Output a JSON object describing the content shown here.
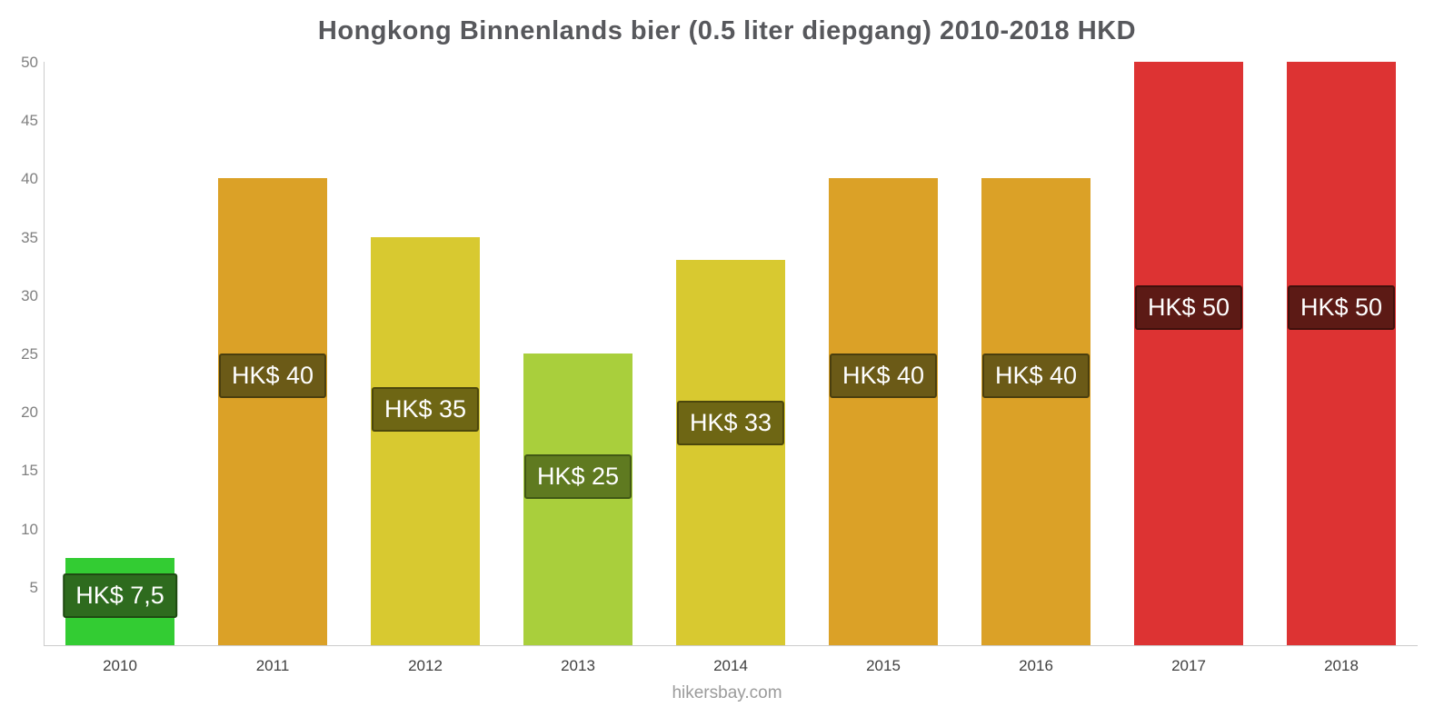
{
  "title": "Hongkong Binnenlands bier (0.5 liter diepgang) 2010-2018 HKD",
  "footer": "hikersbay.com",
  "chart_data": {
    "type": "bar",
    "title": "Hongkong Binnenlands bier (0.5 liter diepgang) 2010-2018 HKD",
    "categories": [
      "2010",
      "2011",
      "2012",
      "2013",
      "2014",
      "2015",
      "2016",
      "2017",
      "2018"
    ],
    "values": [
      7.5,
      40,
      35,
      25,
      33,
      40,
      40,
      50,
      50
    ],
    "bar_labels": [
      "HK$ 7,5",
      "HK$ 40",
      "HK$ 35",
      "HK$ 25",
      "HK$ 33",
      "HK$ 40",
      "HK$ 40",
      "HK$ 50",
      "HK$ 50"
    ],
    "bar_colors": [
      "#33cc33",
      "#dba127",
      "#d8c930",
      "#a9cf3c",
      "#d8c930",
      "#dba127",
      "#dba127",
      "#dd3333",
      "#dd3333"
    ],
    "label_bg_colors": [
      "#2e6b1e",
      "#6b5a17",
      "#6e6614",
      "#5f7a20",
      "#6e6614",
      "#6b5a17",
      "#6b5a17",
      "#5c1a15",
      "#5c1a15"
    ],
    "label_border_colors": [
      "#1f4a12",
      "#4a3e0e",
      "#4c470c",
      "#415815",
      "#4c470c",
      "#4a3e0e",
      "#4a3e0e",
      "#40100c",
      "#40100c"
    ],
    "xlabel": "",
    "ylabel": "",
    "ylim": [
      0,
      50
    ],
    "yticks": [
      5,
      10,
      15,
      20,
      25,
      30,
      35,
      40,
      45,
      50
    ],
    "grid": false,
    "legend_position": "none",
    "axis_color": "#cccccc",
    "tick_label_color": "#808080",
    "x_label_color": "#404040"
  }
}
